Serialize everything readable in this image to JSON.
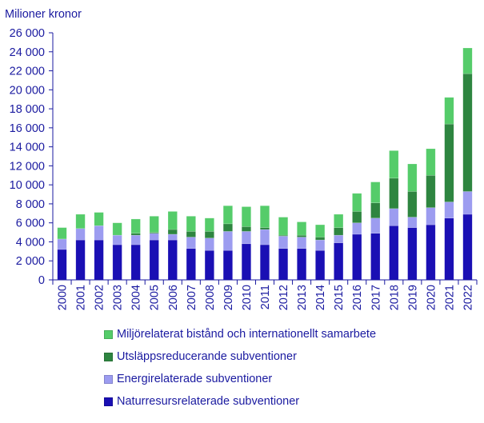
{
  "chart_data": {
    "type": "bar",
    "stacked": true,
    "ylabel": "Milioner kronor",
    "ylim": [
      0,
      26000
    ],
    "ytick_step": 2000,
    "yticks": [
      "0",
      "2 000",
      "4 000",
      "6 000",
      "8 000",
      "10 000",
      "12 000",
      "14 000",
      "16 000",
      "18 000",
      "20 000",
      "22 000",
      "24 000",
      "26 000"
    ],
    "grid": false,
    "legend_position": "bottom",
    "categories": [
      "2000",
      "2001",
      "2002",
      "2003",
      "2004",
      "2005",
      "2006",
      "2007",
      "2008",
      "2009",
      "2010",
      "2011",
      "2012",
      "2013",
      "2014",
      "2015",
      "2016",
      "2017",
      "2018",
      "2019",
      "2020",
      "2021",
      "2022"
    ],
    "series": [
      {
        "name": "Naturresursrelaterade subventioner",
        "color": "#1a0fb4",
        "values": [
          3200,
          4200,
          4200,
          3700,
          3700,
          4200,
          4200,
          3300,
          3100,
          3100,
          3800,
          3700,
          3300,
          3300,
          3100,
          3900,
          4800,
          4900,
          5700,
          5500,
          5800,
          6500,
          6900
        ]
      },
      {
        "name": "Energirelaterade subventioner",
        "color": "#9c9cf0",
        "values": [
          1100,
          1200,
          1500,
          1000,
          1000,
          700,
          600,
          1200,
          1300,
          2000,
          1300,
          1600,
          1300,
          1200,
          1100,
          800,
          1200,
          1600,
          1800,
          1100,
          1800,
          1700,
          2400
        ]
      },
      {
        "name": "Utsläppsreducerande subventioner",
        "color": "#2e8540",
        "values": [
          0,
          0,
          0,
          0,
          200,
          100,
          500,
          600,
          700,
          800,
          500,
          200,
          100,
          200,
          300,
          800,
          1200,
          1600,
          3200,
          2700,
          3400,
          8200,
          12400
        ]
      },
      {
        "name": "Miljörelaterat bistånd och internationellt samarbete",
        "color": "#55cc6a",
        "values": [
          1200,
          1500,
          1400,
          1300,
          1500,
          1700,
          1900,
          1600,
          1400,
          1900,
          2100,
          2300,
          1900,
          1400,
          1300,
          1400,
          1900,
          2200,
          2900,
          2900,
          2800,
          2800,
          2700
        ]
      }
    ]
  }
}
